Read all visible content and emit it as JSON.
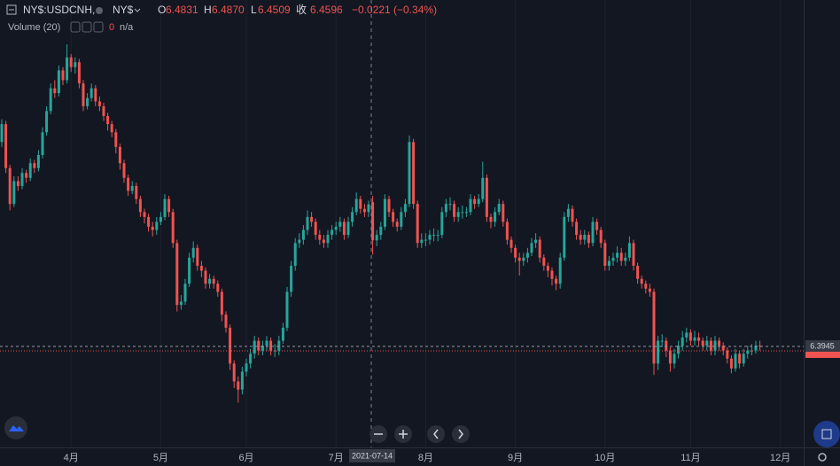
{
  "chart_data": {
    "type": "candlestick",
    "legend": {
      "symbol": "NY$:USDCNH,",
      "exchange": "NY$",
      "open_label": "O",
      "open": "6.4831",
      "high_label": "H",
      "high": "6.4870",
      "low_label": "L",
      "low": "6.4509",
      "close_label": "收",
      "close": "6.4596",
      "change": "−0.0221 (−0.34%)"
    },
    "volume_label": "Volume (20)",
    "volume_value": "0",
    "volume_na": "n/a",
    "crosshair_date": "2021-07-14",
    "up_color": "#26a69a",
    "down_color": "#ef5350",
    "ylim": [
      6.3325,
      6.6072
    ],
    "categories": [
      null,
      null,
      null,
      null,
      null,
      null,
      null,
      null,
      null,
      null,
      null,
      null,
      null,
      null,
      null,
      null,
      null,
      "4月",
      null,
      null,
      null,
      null,
      null,
      null,
      null,
      null,
      null,
      null,
      null,
      null,
      null,
      null,
      null,
      null,
      null,
      null,
      null,
      null,
      null,
      "5月",
      null,
      null,
      null,
      null,
      null,
      null,
      null,
      null,
      null,
      null,
      null,
      null,
      null,
      null,
      null,
      null,
      null,
      null,
      null,
      null,
      "6月",
      null,
      null,
      null,
      null,
      null,
      null,
      null,
      null,
      null,
      null,
      null,
      null,
      null,
      null,
      null,
      null,
      null,
      null,
      null,
      null,
      null,
      "7月",
      null,
      null,
      null,
      null,
      null,
      null,
      null,
      null,
      null,
      null,
      null,
      null,
      null,
      null,
      null,
      null,
      null,
      null,
      null,
      null,
      null,
      "8月",
      null,
      null,
      null,
      null,
      null,
      null,
      null,
      null,
      null,
      null,
      null,
      null,
      null,
      null,
      null,
      null,
      null,
      null,
      null,
      null,
      null,
      "9月",
      null,
      null,
      null,
      null,
      null,
      null,
      null,
      null,
      null,
      null,
      null,
      null,
      null,
      null,
      null,
      null,
      null,
      null,
      null,
      null,
      null,
      "10月",
      null,
      null,
      null,
      null,
      null,
      null,
      null,
      null,
      null,
      null,
      null,
      null,
      null,
      null,
      null,
      null,
      null,
      null,
      null,
      null,
      "11月",
      null,
      null,
      null,
      null,
      null,
      null,
      null,
      null,
      null,
      null,
      null,
      null,
      null,
      null,
      null,
      null,
      null,
      null,
      null,
      null,
      null,
      "12月"
    ],
    "open": [
      6.52,
      6.531,
      6.504,
      6.482,
      6.496,
      6.493,
      6.501,
      6.498,
      6.507,
      6.504,
      6.512,
      6.526,
      6.539,
      6.553,
      6.55,
      6.564,
      6.558,
      6.572,
      6.566,
      6.569,
      6.556,
      6.542,
      6.547,
      6.553,
      6.545,
      6.542,
      6.536,
      6.531,
      6.526,
      6.517,
      6.507,
      6.498,
      6.49,
      6.493,
      6.485,
      6.477,
      6.474,
      6.468,
      6.466,
      6.471,
      6.474,
      6.485,
      6.477,
      6.458,
      6.42,
      6.422,
      6.433,
      6.449,
      6.455,
      6.444,
      6.441,
      6.433,
      6.436,
      6.433,
      6.428,
      6.414,
      6.406,
      6.384,
      6.373,
      6.368,
      6.379,
      6.384,
      6.39,
      6.398,
      6.392,
      6.395,
      6.398,
      6.392,
      6.392,
      6.398,
      6.406,
      6.428,
      6.444,
      6.458,
      6.46,
      6.466,
      6.474,
      6.471,
      6.463,
      6.46,
      6.458,
      6.463,
      6.466,
      6.468,
      6.471,
      6.463,
      6.471,
      6.477,
      6.485,
      6.479,
      6.477,
      6.4831,
      6.4596,
      6.463,
      6.468,
      6.485,
      6.477,
      6.471,
      6.468,
      6.477,
      6.482,
      6.52,
      6.482,
      6.458,
      6.46,
      6.46,
      6.463,
      6.463,
      6.463,
      6.477,
      6.482,
      6.482,
      6.474,
      6.477,
      6.477,
      6.477,
      6.485,
      6.482,
      6.485,
      6.498,
      6.474,
      6.471,
      6.477,
      6.482,
      6.471,
      6.46,
      6.455,
      6.449,
      6.447,
      6.449,
      6.452,
      6.458,
      6.46,
      6.449,
      6.444,
      6.441,
      6.436,
      6.433,
      6.449,
      6.474,
      6.479,
      6.471,
      6.463,
      6.46,
      6.463,
      6.458,
      6.471,
      6.466,
      6.458,
      6.444,
      6.447,
      6.449,
      6.452,
      6.447,
      6.449,
      6.458,
      6.444,
      6.436,
      6.433,
      6.43,
      6.428,
      6.384,
      6.398,
      6.398,
      6.392,
      6.384,
      6.39,
      6.395,
      6.4,
      6.403,
      6.398,
      6.4,
      6.398,
      6.395,
      6.398,
      6.392,
      6.398,
      6.395,
      6.392,
      6.387,
      6.381,
      6.39,
      6.384,
      6.39,
      6.392,
      6.392,
      6.395,
      null,
      null,
      null,
      null,
      null
    ],
    "high": [
      6.534,
      6.533,
      6.506,
      6.499,
      6.499,
      6.504,
      6.503,
      6.51,
      6.509,
      6.515,
      6.529,
      6.542,
      6.556,
      6.558,
      6.567,
      6.566,
      6.58,
      6.574,
      6.572,
      6.571,
      6.558,
      6.55,
      6.556,
      6.555,
      6.548,
      6.544,
      6.538,
      6.533,
      6.528,
      6.519,
      6.509,
      6.5,
      6.496,
      6.495,
      6.487,
      6.479,
      6.476,
      6.471,
      6.474,
      6.477,
      6.488,
      6.487,
      6.479,
      6.46,
      6.426,
      6.436,
      6.452,
      6.459,
      6.457,
      6.447,
      6.443,
      6.439,
      6.438,
      6.435,
      6.43,
      6.416,
      6.408,
      6.386,
      6.376,
      6.382,
      6.387,
      6.393,
      6.401,
      6.4,
      6.398,
      6.401,
      6.4,
      6.396,
      6.401,
      6.409,
      6.431,
      6.447,
      6.461,
      6.464,
      6.469,
      6.478,
      6.477,
      6.473,
      6.466,
      6.463,
      6.466,
      6.469,
      6.471,
      6.474,
      6.473,
      6.474,
      6.48,
      6.489,
      6.487,
      6.482,
      6.484,
      6.487,
      6.466,
      6.471,
      6.488,
      6.487,
      6.479,
      6.473,
      6.48,
      6.485,
      6.524,
      6.522,
      6.484,
      6.464,
      6.464,
      6.466,
      6.467,
      6.466,
      6.48,
      6.485,
      6.486,
      6.484,
      6.48,
      6.481,
      6.48,
      6.488,
      6.487,
      6.488,
      6.508,
      6.5,
      6.476,
      6.48,
      6.485,
      6.484,
      6.473,
      6.462,
      6.457,
      6.452,
      6.452,
      6.455,
      6.461,
      6.464,
      6.462,
      6.451,
      6.446,
      6.443,
      6.438,
      6.452,
      6.477,
      6.482,
      6.481,
      6.473,
      6.466,
      6.466,
      6.465,
      6.474,
      6.473,
      6.468,
      6.46,
      6.45,
      6.452,
      6.456,
      6.455,
      6.452,
      6.462,
      6.46,
      6.446,
      6.438,
      6.435,
      6.433,
      6.43,
      6.401,
      6.402,
      6.4,
      6.394,
      6.393,
      6.398,
      6.404,
      6.406,
      6.405,
      6.404,
      6.403,
      6.4,
      6.401,
      6.4,
      6.401,
      6.4,
      6.397,
      6.394,
      6.389,
      6.393,
      6.392,
      6.393,
      6.395,
      6.396,
      6.398,
      6.398,
      null,
      null,
      null,
      null,
      null
    ],
    "low": [
      6.517,
      6.501,
      6.478,
      6.48,
      6.49,
      6.491,
      6.495,
      6.496,
      6.501,
      6.502,
      6.51,
      6.524,
      6.537,
      6.547,
      6.548,
      6.555,
      6.556,
      6.563,
      6.562,
      6.553,
      6.539,
      6.54,
      6.545,
      6.542,
      6.539,
      6.533,
      6.527,
      6.523,
      6.513,
      6.503,
      6.495,
      6.487,
      6.488,
      6.482,
      6.474,
      6.47,
      6.465,
      6.462,
      6.463,
      6.469,
      6.472,
      6.474,
      6.455,
      6.416,
      6.417,
      6.42,
      6.431,
      6.446,
      6.441,
      6.437,
      6.43,
      6.43,
      6.43,
      6.425,
      6.41,
      6.403,
      6.38,
      6.369,
      6.36,
      6.365,
      6.376,
      6.381,
      6.387,
      6.389,
      6.389,
      6.392,
      6.389,
      6.388,
      6.389,
      6.396,
      6.404,
      6.425,
      6.441,
      6.455,
      6.457,
      6.463,
      6.468,
      6.46,
      6.457,
      6.455,
      6.455,
      6.46,
      6.463,
      6.465,
      6.46,
      6.461,
      6.468,
      6.475,
      6.476,
      6.474,
      6.474,
      6.4509,
      6.456,
      6.46,
      6.466,
      6.474,
      6.468,
      6.465,
      6.466,
      6.474,
      6.48,
      6.479,
      6.455,
      6.455,
      6.456,
      6.457,
      6.459,
      6.459,
      6.461,
      6.474,
      6.478,
      6.471,
      6.471,
      6.473,
      6.474,
      6.475,
      6.479,
      6.48,
      6.483,
      6.471,
      6.467,
      6.468,
      6.475,
      6.468,
      6.457,
      6.452,
      6.446,
      6.438,
      6.444,
      6.446,
      6.45,
      6.455,
      6.446,
      6.441,
      6.437,
      6.432,
      6.429,
      6.43,
      6.447,
      6.471,
      6.468,
      6.46,
      6.457,
      6.457,
      6.455,
      6.456,
      6.463,
      6.455,
      6.441,
      6.441,
      6.444,
      6.446,
      6.444,
      6.444,
      6.447,
      6.441,
      6.433,
      6.43,
      6.427,
      6.425,
      6.377,
      6.38,
      6.394,
      6.388,
      6.379,
      6.381,
      6.387,
      6.392,
      6.397,
      6.395,
      6.395,
      6.395,
      6.392,
      6.392,
      6.389,
      6.389,
      6.392,
      6.389,
      6.384,
      6.378,
      6.379,
      6.381,
      6.382,
      6.387,
      6.389,
      6.39,
      6.392,
      null,
      null,
      null,
      null,
      null
    ],
    "close": [
      6.531,
      6.504,
      6.482,
      6.496,
      6.493,
      6.501,
      6.498,
      6.507,
      6.504,
      6.512,
      6.526,
      6.539,
      6.553,
      6.55,
      6.564,
      6.558,
      6.572,
      6.566,
      6.569,
      6.556,
      6.542,
      6.547,
      6.553,
      6.545,
      6.542,
      6.536,
      6.531,
      6.526,
      6.517,
      6.507,
      6.498,
      6.49,
      6.493,
      6.485,
      6.477,
      6.474,
      6.468,
      6.466,
      6.471,
      6.474,
      6.485,
      6.477,
      6.458,
      6.42,
      6.422,
      6.433,
      6.449,
      6.455,
      6.444,
      6.441,
      6.433,
      6.436,
      6.433,
      6.428,
      6.414,
      6.406,
      6.384,
      6.373,
      6.368,
      6.379,
      6.384,
      6.39,
      6.398,
      6.392,
      6.395,
      6.398,
      6.392,
      6.392,
      6.398,
      6.406,
      6.428,
      6.444,
      6.458,
      6.46,
      6.466,
      6.474,
      6.471,
      6.463,
      6.46,
      6.458,
      6.463,
      6.466,
      6.468,
      6.471,
      6.463,
      6.471,
      6.477,
      6.485,
      6.479,
      6.477,
      6.4817,
      6.4596,
      6.463,
      6.468,
      6.485,
      6.477,
      6.471,
      6.468,
      6.477,
      6.482,
      6.52,
      6.482,
      6.458,
      6.46,
      6.46,
      6.463,
      6.463,
      6.463,
      6.477,
      6.482,
      6.482,
      6.474,
      6.477,
      6.477,
      6.477,
      6.485,
      6.482,
      6.485,
      6.498,
      6.474,
      6.471,
      6.477,
      6.482,
      6.471,
      6.46,
      6.455,
      6.449,
      6.447,
      6.449,
      6.452,
      6.458,
      6.46,
      6.449,
      6.444,
      6.441,
      6.436,
      6.433,
      6.449,
      6.474,
      6.479,
      6.471,
      6.463,
      6.46,
      6.463,
      6.458,
      6.471,
      6.466,
      6.458,
      6.444,
      6.447,
      6.449,
      6.452,
      6.447,
      6.449,
      6.458,
      6.444,
      6.436,
      6.433,
      6.43,
      6.428,
      6.384,
      6.398,
      6.398,
      6.392,
      6.384,
      6.39,
      6.395,
      6.4,
      6.403,
      6.398,
      6.4,
      6.398,
      6.395,
      6.398,
      6.392,
      6.398,
      6.395,
      6.392,
      6.387,
      6.381,
      6.39,
      6.384,
      6.39,
      6.392,
      6.392,
      6.395,
      6.3945,
      null,
      null,
      null,
      null,
      null
    ]
  }
}
